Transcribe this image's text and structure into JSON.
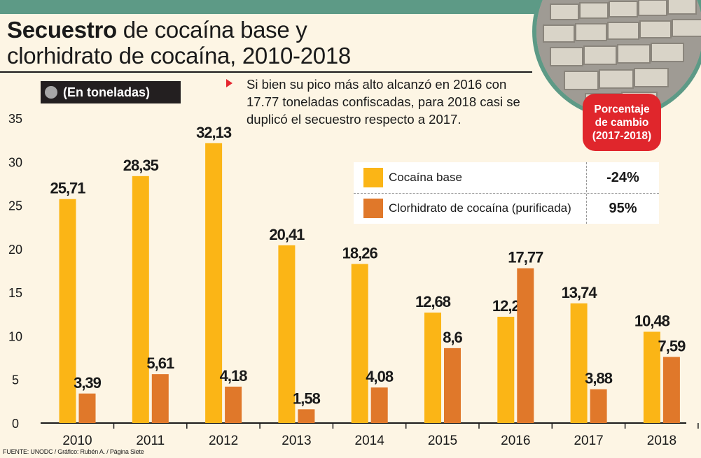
{
  "title": {
    "bold": "Secuestro",
    "rest_line1": " de cocaína base y",
    "line2": "clorhidrato de cocaína, 2010-2018"
  },
  "unit_label": "(En toneladas)",
  "note": "Si bien su pico más alto alcanzó en 2016 con 17.77 toneladas confiscadas, para 2018 casi se duplicó el secuestro respecto a 2017.",
  "change_badge": {
    "line1": "Porcentaje",
    "line2": "de cambio",
    "line3": "(2017-2018)"
  },
  "legend": [
    {
      "name": "Cocaína base",
      "change": "-24%",
      "color": "#fbb516"
    },
    {
      "name": "Clorhidrato de cocaína (purificada)",
      "change": "95%",
      "color": "#e0782a"
    }
  ],
  "source": "FUENTE: UNODC / Gráfico: Rubén A. / Página Siete",
  "chart_data": {
    "type": "bar",
    "categories": [
      "2010",
      "2011",
      "2012",
      "2013",
      "2014",
      "2015",
      "2016",
      "2017",
      "2018"
    ],
    "series": [
      {
        "name": "Cocaína base",
        "color": "#fbb516",
        "values": [
          25.71,
          28.35,
          32.13,
          20.41,
          18.26,
          12.68,
          12.2,
          13.74,
          10.48
        ],
        "labels": [
          "25,71",
          "28,35",
          "32,13",
          "20,41",
          "18,26",
          "12,68",
          "12,2",
          "13,74",
          "10,48"
        ]
      },
      {
        "name": "Clorhidrato de cocaína (purificada)",
        "color": "#e0782a",
        "values": [
          3.39,
          5.61,
          4.18,
          1.58,
          4.08,
          8.6,
          17.77,
          3.88,
          7.59
        ],
        "labels": [
          "3,39",
          "5,61",
          "4,18",
          "1,58",
          "4,08",
          "8,6",
          "17,77",
          "3,88",
          "7,59"
        ]
      }
    ],
    "yticks": [
      0,
      5,
      10,
      15,
      20,
      25,
      30,
      35
    ],
    "ylim": [
      0,
      35
    ],
    "grid": false,
    "legend_position": "top-right"
  }
}
